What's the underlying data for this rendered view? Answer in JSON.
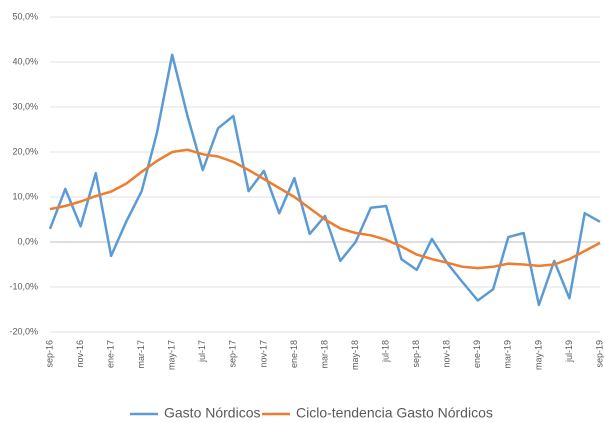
{
  "chart_data": {
    "type": "line",
    "categories": [
      "sep-16",
      null,
      "nov-16",
      null,
      "ene-17",
      null,
      "mar-17",
      null,
      "may-17",
      null,
      "jul-17",
      null,
      "sep-17",
      null,
      "nov-17",
      null,
      "ene-18",
      null,
      "mar-18",
      null,
      "may-18",
      null,
      "jul-18",
      null,
      "sep-18",
      null,
      "nov-18",
      null,
      "ene-19",
      null,
      "mar-19",
      null,
      "may-19",
      null,
      "jul-19",
      null,
      "sep-19"
    ],
    "series": [
      {
        "name": "Gasto Nórdicos",
        "color": "#5b9bd5",
        "values": [
          2.9,
          11.8,
          3.5,
          15.3,
          -3.1,
          4.6,
          11.3,
          24.2,
          41.6,
          28,
          16,
          25.3,
          28,
          11.3,
          15.8,
          6.4,
          14.2,
          1.8,
          5.8,
          -4.2,
          0,
          7.6,
          8,
          -3.8,
          -6.2,
          0.7,
          -4.7,
          -8.9,
          -13,
          -10.5,
          1.1,
          2,
          -14,
          -4.2,
          -12.5,
          6.4,
          4.5
        ]
      },
      {
        "name": "Ciclo-tendencia Gasto Nórdicos",
        "color": "#ed7d31",
        "values": [
          7.3,
          8,
          9,
          10.2,
          11.2,
          13,
          15.6,
          18,
          20,
          20.5,
          19.5,
          19,
          17.8,
          16,
          14,
          12,
          10,
          7.5,
          5,
          3,
          2,
          1.5,
          0.5,
          -1,
          -2.8,
          -3.8,
          -4.6,
          -5.5,
          -5.8,
          -5.5,
          -4.8,
          -5,
          -5.3,
          -5,
          -3.8,
          -2,
          -0.2
        ]
      }
    ],
    "ylim": [
      -20,
      50
    ],
    "yticks": [
      {
        "value": -20,
        "label": "-20,0%"
      },
      {
        "value": -10,
        "label": "-10,0%"
      },
      {
        "value": 0,
        "label": "0,0%"
      },
      {
        "value": 10,
        "label": "10,0%"
      },
      {
        "value": 20,
        "label": "20,0%"
      },
      {
        "value": 30,
        "label": "30,0%"
      },
      {
        "value": 40,
        "label": "40,0%"
      },
      {
        "value": 50,
        "label": "50,0%"
      }
    ],
    "grid": true,
    "legend": "bottom"
  }
}
